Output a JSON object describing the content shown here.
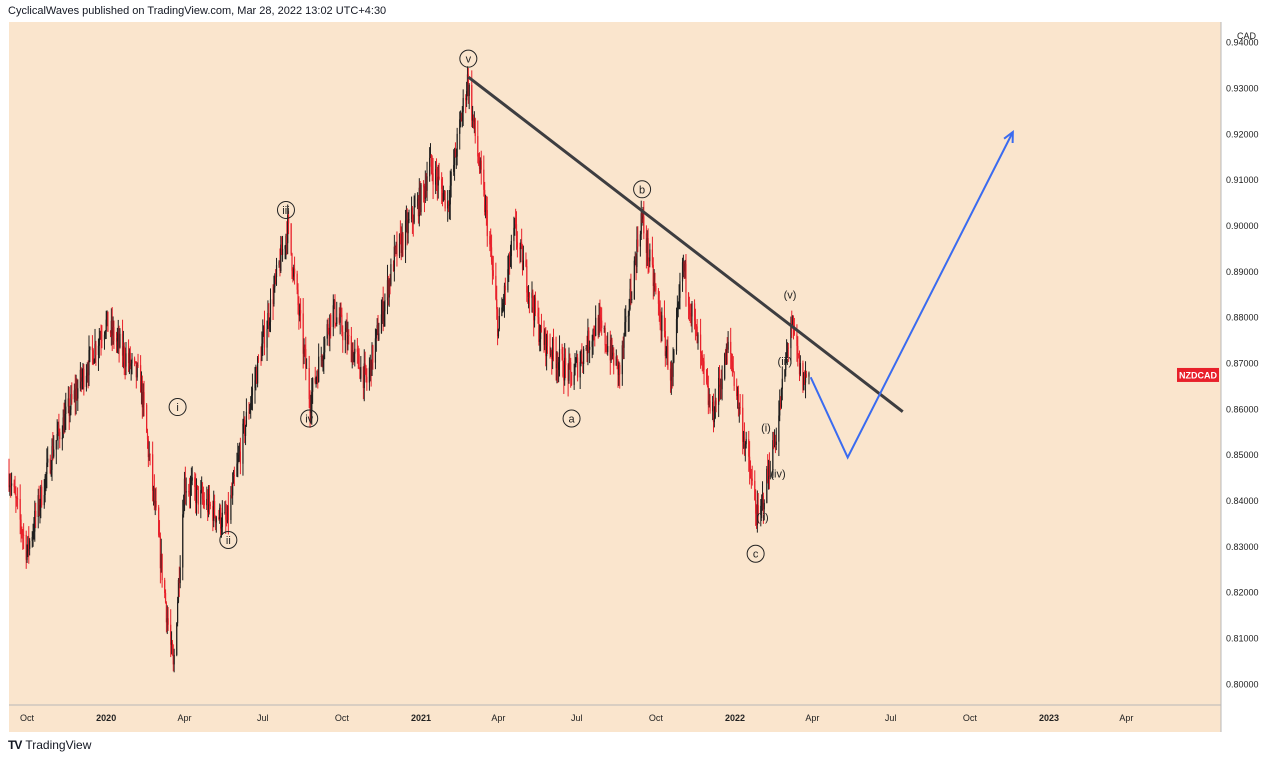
{
  "header": {
    "text": "CyclicalWaves published on TradingView.com, Mar 28, 2022 13:02 UTC+4:30"
  },
  "footer": {
    "brand": "TradingView",
    "logo_icon": "tradingview-logo-icon"
  },
  "colors": {
    "background": "#fae5cd",
    "candle_up": "#1e1e1e",
    "candle_down": "#e8202a",
    "trendline": "#3d3d40",
    "projection": "#3a6bf0",
    "symbol_badge": "#e8202a"
  },
  "chart_data": {
    "type": "candlestick",
    "symbol": "NZDCAD",
    "currency_label": "CAD",
    "y_axis": {
      "ticks": [
        "0.80000",
        "0.81000",
        "0.82000",
        "0.83000",
        "0.84000",
        "0.85000",
        "0.86000",
        "0.87000",
        "0.88000",
        "0.89000",
        "0.90000",
        "0.91000",
        "0.92000",
        "0.93000",
        "0.94000"
      ],
      "range": [
        0.7955,
        0.9445
      ]
    },
    "x_axis": {
      "ticks": [
        "Oct",
        "2020",
        "Apr",
        "Jul",
        "Oct",
        "2021",
        "Apr",
        "Jul",
        "Oct",
        "2022",
        "Apr",
        "Jul",
        "Oct",
        "2023",
        "Apr"
      ],
      "tick_dates": [
        "2019-10-01",
        "2020-01-01",
        "2020-04-01",
        "2020-07-01",
        "2020-10-01",
        "2021-01-01",
        "2021-04-01",
        "2021-07-01",
        "2021-10-01",
        "2022-01-01",
        "2022-04-01",
        "2022-07-01",
        "2022-10-01",
        "2023-01-01",
        "2023-04-01"
      ],
      "range": [
        "2019-09-10",
        "2023-07-20"
      ]
    },
    "price_path": [
      [
        "2019-09-10",
        0.846
      ],
      [
        "2019-10-01",
        0.829
      ],
      [
        "2019-11-01",
        0.852
      ],
      [
        "2019-12-31",
        0.879
      ],
      [
        "2020-02-10",
        0.866
      ],
      [
        "2020-03-19",
        0.803
      ],
      [
        "2020-04-01",
        0.844
      ],
      [
        "2020-05-20",
        0.835
      ],
      [
        "2020-06-10",
        0.856
      ],
      [
        "2020-07-30",
        0.9
      ],
      [
        "2020-08-25",
        0.862
      ],
      [
        "2020-09-20",
        0.882
      ],
      [
        "2020-10-30",
        0.866
      ],
      [
        "2020-12-01",
        0.893
      ],
      [
        "2021-01-05",
        0.908
      ],
      [
        "2021-01-10",
        0.914
      ],
      [
        "2021-02-01",
        0.905
      ],
      [
        "2021-02-24",
        0.932
      ],
      [
        "2021-03-20",
        0.899
      ],
      [
        "2021-04-01",
        0.877
      ],
      [
        "2021-04-20",
        0.899
      ],
      [
        "2021-05-20",
        0.876
      ],
      [
        "2021-06-25",
        0.867
      ],
      [
        "2021-07-25",
        0.879
      ],
      [
        "2021-08-20",
        0.868
      ],
      [
        "2021-09-14",
        0.902
      ],
      [
        "2021-10-20",
        0.866
      ],
      [
        "2021-11-01",
        0.892
      ],
      [
        "2021-12-05",
        0.858
      ],
      [
        "2021-12-25",
        0.874
      ],
      [
        "2022-01-28",
        0.835
      ],
      [
        "2022-02-20",
        0.857
      ],
      [
        "2022-03-07",
        0.879
      ],
      [
        "2022-03-20",
        0.866
      ],
      [
        "2022-03-28",
        0.868
      ]
    ],
    "annotations": [
      {
        "label": "v",
        "date": "2021-02-25",
        "price": 0.9365
      },
      {
        "label": "iii",
        "date": "2020-07-28",
        "price": 0.9035
      },
      {
        "label": "i",
        "date": "2020-03-24",
        "price": 0.8605
      },
      {
        "label": "ii",
        "date": "2020-05-22",
        "price": 0.8315
      },
      {
        "label": "iv",
        "date": "2020-08-24",
        "price": 0.858
      },
      {
        "label": "b",
        "date": "2021-09-15",
        "price": 0.908
      },
      {
        "label": "a",
        "date": "2021-06-25",
        "price": 0.858
      },
      {
        "label": "c",
        "date": "2022-01-25",
        "price": 0.8285
      },
      {
        "label": "(v)",
        "date": "2022-03-06",
        "price": 0.885
      },
      {
        "label": "(iii)",
        "date": "2022-02-28",
        "price": 0.8705
      },
      {
        "label": "(i)",
        "date": "2022-02-06",
        "price": 0.856
      },
      {
        "label": "(iv)",
        "date": "2022-02-20",
        "price": 0.846
      },
      {
        "label": "(ii)",
        "date": "2022-02-02",
        "price": 0.8365
      }
    ],
    "trendline": [
      [
        "2021-02-25",
        0.9325
      ],
      [
        "2022-07-15",
        0.8595
      ]
    ],
    "projection": [
      [
        "2022-03-30",
        0.867
      ],
      [
        "2022-05-12",
        0.8495
      ],
      [
        "2022-11-20",
        0.9205
      ]
    ],
    "last_price_label_price": 0.8675
  }
}
